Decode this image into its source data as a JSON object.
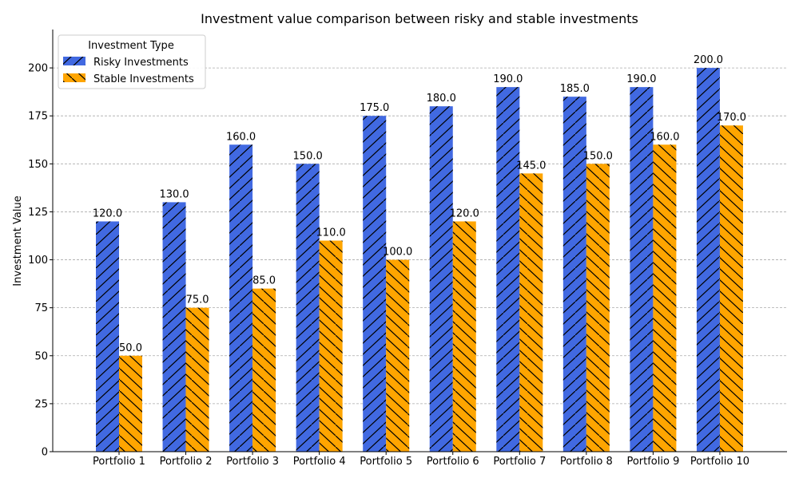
{
  "chart_data": {
    "type": "bar",
    "title": "Investment value comparison between risky and stable investments",
    "xlabel": "",
    "ylabel": "Investment Value",
    "categories": [
      "Portfolio 1",
      "Portfolio 2",
      "Portfolio 3",
      "Portfolio 4",
      "Portfolio 5",
      "Portfolio 6",
      "Portfolio 7",
      "Portfolio 8",
      "Portfolio 9",
      "Portfolio 10"
    ],
    "series": [
      {
        "name": "Risky Investments",
        "values": [
          120,
          130,
          160,
          150,
          175,
          180,
          190,
          185,
          190,
          200
        ],
        "color": "#4169E1",
        "hatch": "forward-slash"
      },
      {
        "name": "Stable Investments",
        "values": [
          50,
          75,
          85,
          110,
          100,
          120,
          145,
          150,
          160,
          170
        ],
        "color": "#FFA500",
        "hatch": "back-slash"
      }
    ],
    "data_labels": [
      [
        "120.0",
        "130.0",
        "160.0",
        "150.0",
        "175.0",
        "180.0",
        "190.0",
        "185.0",
        "190.0",
        "200.0"
      ],
      [
        "50.0",
        "75.0",
        "85.0",
        "110.0",
        "100.0",
        "120.0",
        "145.0",
        "150.0",
        "160.0",
        "170.0"
      ]
    ],
    "ylim": [
      0,
      220
    ],
    "yticks": [
      0,
      25,
      50,
      75,
      100,
      125,
      150,
      175,
      200
    ],
    "ytick_labels": [
      "0",
      "25",
      "50",
      "75",
      "100",
      "125",
      "150",
      "175",
      "200"
    ],
    "grid": {
      "y": true,
      "x": false,
      "style": "dashed",
      "color": "#aaaaaa"
    },
    "legend": {
      "title": "Investment Type",
      "placement": "top-left"
    }
  }
}
